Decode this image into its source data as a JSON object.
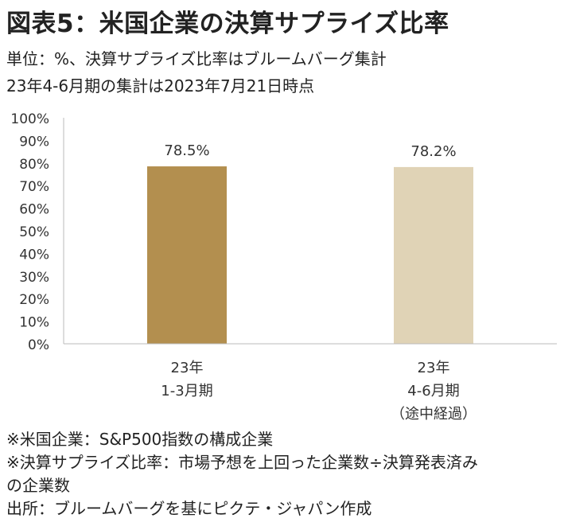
{
  "title": "図表5：米国企業の決算サプライズ比率",
  "subtitle_lines": [
    "単位：%、決算サプライズ比率はブルームバーグ集計",
    "23年4-6月期の集計は2023年7月21日時点"
  ],
  "chart_data": {
    "type": "bar",
    "categories": [
      [
        "23年",
        "1-3月期"
      ],
      [
        "23年",
        "4-6月期",
        "（途中経過）"
      ]
    ],
    "values": [
      78.5,
      78.2
    ],
    "value_labels": [
      "78.5%",
      "78.2%"
    ],
    "bar_colors": [
      "#b38f4f",
      "#e0d3b6"
    ],
    "ylim": [
      0,
      100
    ],
    "yticks": [
      "0%",
      "10%",
      "20%",
      "30%",
      "40%",
      "50%",
      "60%",
      "70%",
      "80%",
      "90%",
      "100%"
    ],
    "grid": false,
    "legend": "none"
  },
  "notes": [
    "※米国企業：S&P500指数の構成企業",
    "※決算サプライズ比率：市場予想を上回った企業数÷決算発表済み",
    "の企業数",
    "出所：ブルームバーグを基にピクテ・ジャパン作成"
  ]
}
